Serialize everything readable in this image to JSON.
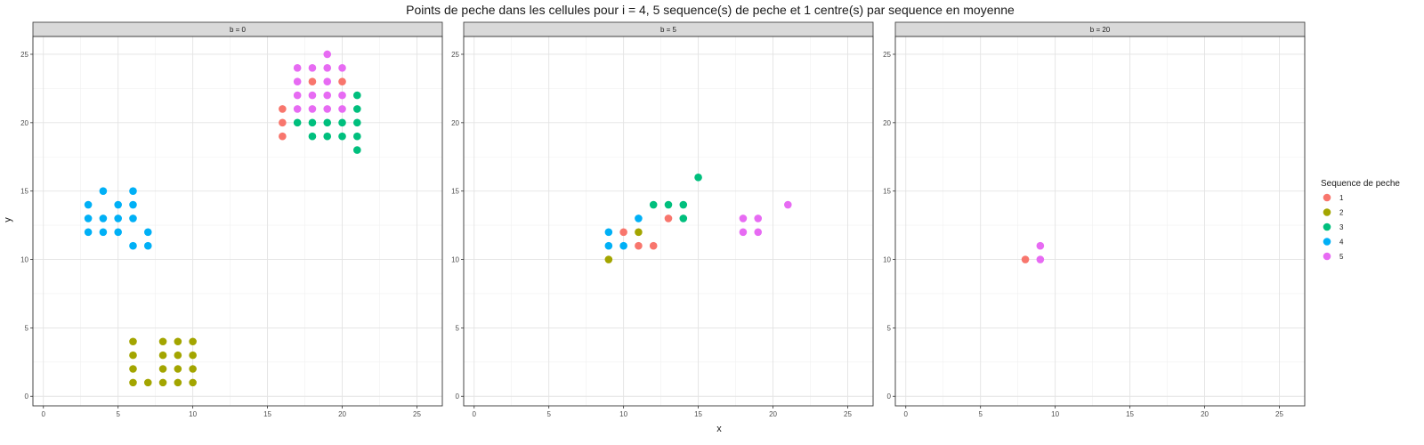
{
  "chart_data": {
    "type": "scatter",
    "title": "Points de peche dans les cellules pour i = 4, 5 sequence(s) de peche et 1 centre(s) par sequence en moyenne",
    "xlabel": "x",
    "ylabel": "y",
    "xlim": [
      -0.7,
      26.7
    ],
    "ylim": [
      -0.7,
      26.3
    ],
    "x_ticks": [
      0,
      5,
      10,
      15,
      20,
      25
    ],
    "y_ticks": [
      0,
      5,
      10,
      15,
      20,
      25
    ],
    "grid": true,
    "legend": {
      "title": "Sequence de peche",
      "position": "right",
      "entries": [
        "1",
        "2",
        "3",
        "4",
        "5"
      ]
    },
    "colors": {
      "1": "#F8766D",
      "2": "#A3A500",
      "3": "#00BF7D",
      "4": "#00B0F6",
      "5": "#E76BF3"
    },
    "facets": [
      {
        "label": "b = 0",
        "series": [
          {
            "name": "1",
            "points": [
              [
                16,
                21
              ],
              [
                16,
                20
              ],
              [
                16,
                19
              ],
              [
                18,
                23
              ],
              [
                20,
                23
              ]
            ]
          },
          {
            "name": "2",
            "points": [
              [
                6,
                4
              ],
              [
                6,
                3
              ],
              [
                6,
                2
              ],
              [
                6,
                1
              ],
              [
                7,
                1
              ],
              [
                8,
                4
              ],
              [
                8,
                3
              ],
              [
                8,
                2
              ],
              [
                8,
                1
              ],
              [
                9,
                4
              ],
              [
                9,
                3
              ],
              [
                9,
                2
              ],
              [
                9,
                1
              ],
              [
                10,
                4
              ],
              [
                10,
                3
              ],
              [
                10,
                2
              ],
              [
                10,
                1
              ]
            ]
          },
          {
            "name": "3",
            "points": [
              [
                17,
                20
              ],
              [
                18,
                20
              ],
              [
                18,
                19
              ],
              [
                19,
                20
              ],
              [
                19,
                19
              ],
              [
                20,
                20
              ],
              [
                20,
                19
              ],
              [
                21,
                22
              ],
              [
                21,
                21
              ],
              [
                21,
                20
              ],
              [
                21,
                19
              ],
              [
                21,
                18
              ]
            ]
          },
          {
            "name": "4",
            "points": [
              [
                3,
                14
              ],
              [
                3,
                13
              ],
              [
                3,
                12
              ],
              [
                4,
                15
              ],
              [
                4,
                13
              ],
              [
                4,
                12
              ],
              [
                5,
                14
              ],
              [
                5,
                13
              ],
              [
                5,
                12
              ],
              [
                6,
                15
              ],
              [
                6,
                14
              ],
              [
                6,
                13
              ],
              [
                6,
                11
              ],
              [
                7,
                12
              ],
              [
                7,
                11
              ]
            ]
          },
          {
            "name": "5",
            "points": [
              [
                17,
                24
              ],
              [
                17,
                23
              ],
              [
                17,
                22
              ],
              [
                17,
                21
              ],
              [
                18,
                24
              ],
              [
                18,
                22
              ],
              [
                18,
                21
              ],
              [
                19,
                25
              ],
              [
                19,
                24
              ],
              [
                19,
                23
              ],
              [
                19,
                22
              ],
              [
                19,
                21
              ],
              [
                20,
                24
              ],
              [
                20,
                22
              ],
              [
                20,
                21
              ]
            ]
          }
        ]
      },
      {
        "label": "b = 5",
        "series": [
          {
            "name": "1",
            "points": [
              [
                10,
                12
              ],
              [
                11,
                11
              ],
              [
                12,
                11
              ],
              [
                13,
                13
              ]
            ]
          },
          {
            "name": "2",
            "points": [
              [
                9,
                10
              ],
              [
                11,
                12
              ]
            ]
          },
          {
            "name": "3",
            "points": [
              [
                12,
                14
              ],
              [
                13,
                14
              ],
              [
                14,
                14
              ],
              [
                14,
                13
              ],
              [
                15,
                16
              ]
            ]
          },
          {
            "name": "4",
            "points": [
              [
                9,
                12
              ],
              [
                9,
                11
              ],
              [
                10,
                11
              ],
              [
                11,
                13
              ]
            ]
          },
          {
            "name": "5",
            "points": [
              [
                18,
                13
              ],
              [
                18,
                12
              ],
              [
                19,
                13
              ],
              [
                19,
                12
              ],
              [
                21,
                14
              ]
            ]
          }
        ]
      },
      {
        "label": "b = 20",
        "series": [
          {
            "name": "1",
            "points": [
              [
                8,
                10
              ]
            ]
          },
          {
            "name": "5",
            "points": [
              [
                9,
                11
              ],
              [
                9,
                10
              ]
            ]
          }
        ]
      }
    ]
  }
}
